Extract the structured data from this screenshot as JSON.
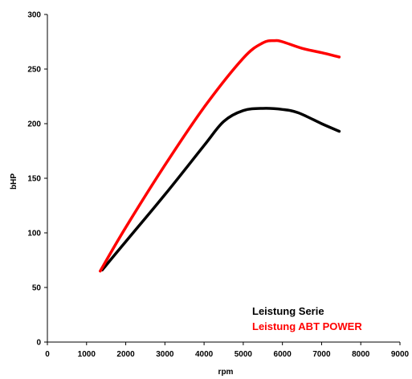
{
  "chart_data": {
    "type": "line",
    "title": "",
    "xlabel": "rpm",
    "ylabel": "bHP",
    "xlim": [
      0,
      9000
    ],
    "ylim": [
      0,
      300
    ],
    "x_ticks": [
      "0",
      "1000",
      "2000",
      "3000",
      "4000",
      "5000",
      "6000",
      "7000",
      "8000",
      "9000"
    ],
    "y_ticks": [
      "0",
      "50",
      "100",
      "150",
      "200",
      "250",
      "300"
    ],
    "grid": false,
    "legend_position": "bottom-right",
    "series": [
      {
        "name": "Leistung Serie",
        "color": "#000000",
        "points": [
          [
            1400,
            66
          ],
          [
            2000,
            92
          ],
          [
            3000,
            135
          ],
          [
            4000,
            180
          ],
          [
            4500,
            202
          ],
          [
            5000,
            212
          ],
          [
            5500,
            214
          ],
          [
            6000,
            213
          ],
          [
            6400,
            210
          ],
          [
            7000,
            200
          ],
          [
            7450,
            193
          ]
        ]
      },
      {
        "name": "Leistung ABT POWER",
        "color": "#ff0000",
        "points": [
          [
            1350,
            65
          ],
          [
            2000,
            105
          ],
          [
            3000,
            162
          ],
          [
            4000,
            215
          ],
          [
            5000,
            260
          ],
          [
            5500,
            274
          ],
          [
            5800,
            276
          ],
          [
            6000,
            275
          ],
          [
            6500,
            269
          ],
          [
            7000,
            265
          ],
          [
            7450,
            261
          ]
        ]
      }
    ]
  }
}
